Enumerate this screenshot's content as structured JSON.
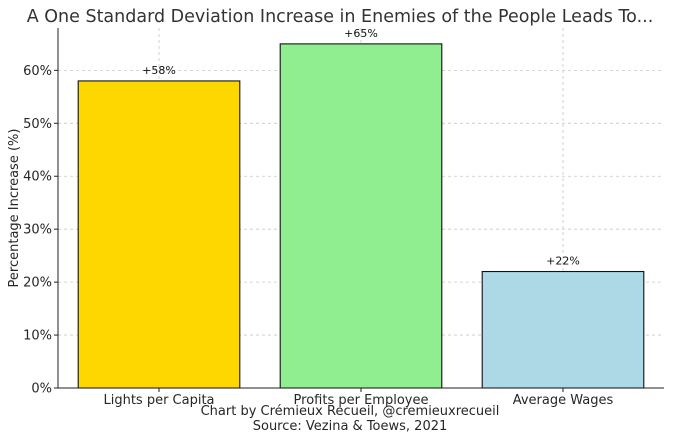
{
  "chart_data": {
    "type": "bar",
    "title": "A One Standard Deviation Increase in Enemies of the People Leads To...",
    "ylabel": "Percentage Increase (%)",
    "xlabel": "",
    "categories": [
      "Lights per Capita",
      "Profits per Employee",
      "Average Wages"
    ],
    "values": [
      58,
      65,
      22
    ],
    "data_labels": [
      "+58%",
      "+65%",
      "+22%"
    ],
    "bar_colors": [
      "#FFD700",
      "#90EE90",
      "#ADD8E6"
    ],
    "ylim": [
      0,
      68
    ],
    "yticks": [
      0,
      10,
      20,
      30,
      40,
      50,
      60
    ],
    "ytick_labels": [
      "0%",
      "10%",
      "20%",
      "30%",
      "40%",
      "50%",
      "60%"
    ],
    "grid": true,
    "legend": "none"
  },
  "footer": {
    "credit": "Chart by Crémieux Recueil, @cremieuxrecueil",
    "source": "Source: Vezina & Toews, 2021"
  }
}
